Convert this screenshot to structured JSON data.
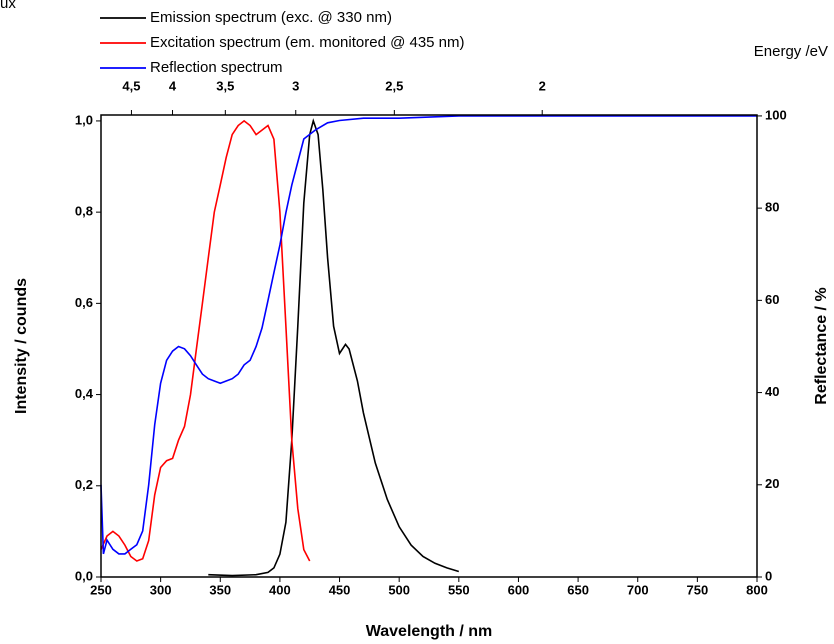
{
  "chart_data": {
    "type": "line",
    "corner_text": "ux",
    "x2_label": "Energy /eV",
    "xlabel": "Wavelength / nm",
    "ylabel": "Intensity / counds",
    "y2label": "Reflectance / %",
    "xlim": [
      250,
      800
    ],
    "xticks": [
      250,
      300,
      350,
      400,
      450,
      500,
      550,
      600,
      650,
      700,
      750,
      800
    ],
    "ylim": [
      0,
      1.013
    ],
    "yticks": [
      {
        "value": 0,
        "label": "0,0"
      },
      {
        "value": 0.2,
        "label": "0,2"
      },
      {
        "value": 0.4,
        "label": "0,4"
      },
      {
        "value": 0.6,
        "label": "0,6"
      },
      {
        "value": 0.8,
        "label": "0,8"
      },
      {
        "value": 1.0,
        "label": "1,0"
      }
    ],
    "y2lim": [
      0,
      100.2
    ],
    "y2ticks": [
      0,
      20,
      40,
      60,
      80,
      100
    ],
    "x2ticks": [
      {
        "value": 4.5,
        "label": "4,5"
      },
      {
        "value": 4,
        "label": "4"
      },
      {
        "value": 3.5,
        "label": "3,5"
      },
      {
        "value": 3,
        "label": "3"
      },
      {
        "value": 2.5,
        "label": "2,5"
      },
      {
        "value": 2,
        "label": "2"
      }
    ],
    "series": [
      {
        "name": "Emission spectrum (exc. @ 330 nm)",
        "color": "#000000",
        "x": [
          340,
          360,
          380,
          390,
          395,
          400,
          405,
          410,
          415,
          420,
          425,
          428,
          432,
          436,
          440,
          445,
          450,
          455,
          458,
          465,
          470,
          480,
          490,
          500,
          510,
          520,
          530,
          540,
          550
        ],
        "values": [
          0.005,
          0.003,
          0.005,
          0.01,
          0.02,
          0.05,
          0.12,
          0.3,
          0.55,
          0.82,
          0.97,
          1.0,
          0.97,
          0.85,
          0.7,
          0.55,
          0.49,
          0.51,
          0.5,
          0.43,
          0.36,
          0.25,
          0.17,
          0.11,
          0.07,
          0.045,
          0.03,
          0.02,
          0.012
        ]
      },
      {
        "name": "Excitation spectrum (em. monitored @ 435 nm)",
        "color": "#ff0000",
        "x": [
          250,
          255,
          260,
          265,
          270,
          275,
          280,
          285,
          290,
          295,
          300,
          305,
          310,
          315,
          320,
          325,
          330,
          335,
          340,
          345,
          350,
          355,
          360,
          365,
          370,
          375,
          380,
          385,
          390,
          395,
          400,
          405,
          410,
          415,
          420,
          425
        ],
        "values": [
          0.06,
          0.09,
          0.1,
          0.09,
          0.07,
          0.045,
          0.035,
          0.04,
          0.08,
          0.18,
          0.24,
          0.255,
          0.26,
          0.3,
          0.33,
          0.4,
          0.5,
          0.6,
          0.7,
          0.8,
          0.86,
          0.92,
          0.97,
          0.99,
          1.0,
          0.99,
          0.97,
          0.98,
          0.99,
          0.96,
          0.8,
          0.55,
          0.3,
          0.15,
          0.06,
          0.035
        ]
      },
      {
        "name": "Reflection spectrum",
        "color": "#0000ff",
        "axis": "y2",
        "x": [
          250,
          252,
          255,
          260,
          265,
          270,
          275,
          280,
          285,
          290,
          295,
          300,
          305,
          310,
          315,
          320,
          325,
          330,
          335,
          340,
          345,
          350,
          355,
          360,
          365,
          370,
          375,
          380,
          385,
          390,
          395,
          400,
          405,
          410,
          415,
          420,
          430,
          440,
          450,
          470,
          500,
          550,
          600,
          650,
          700,
          750,
          800
        ],
        "values": [
          20,
          5,
          8,
          6,
          5,
          5,
          6,
          7,
          10,
          20,
          33,
          42,
          47,
          49,
          50,
          49.5,
          48,
          46,
          44,
          43,
          42.5,
          42,
          42.5,
          43,
          44,
          46,
          47,
          50,
          54,
          60,
          66,
          72,
          79,
          85,
          90,
          95,
          97,
          98.5,
          99,
          99.5,
          99.5,
          100,
          100,
          100,
          100,
          100,
          100
        ]
      }
    ]
  }
}
